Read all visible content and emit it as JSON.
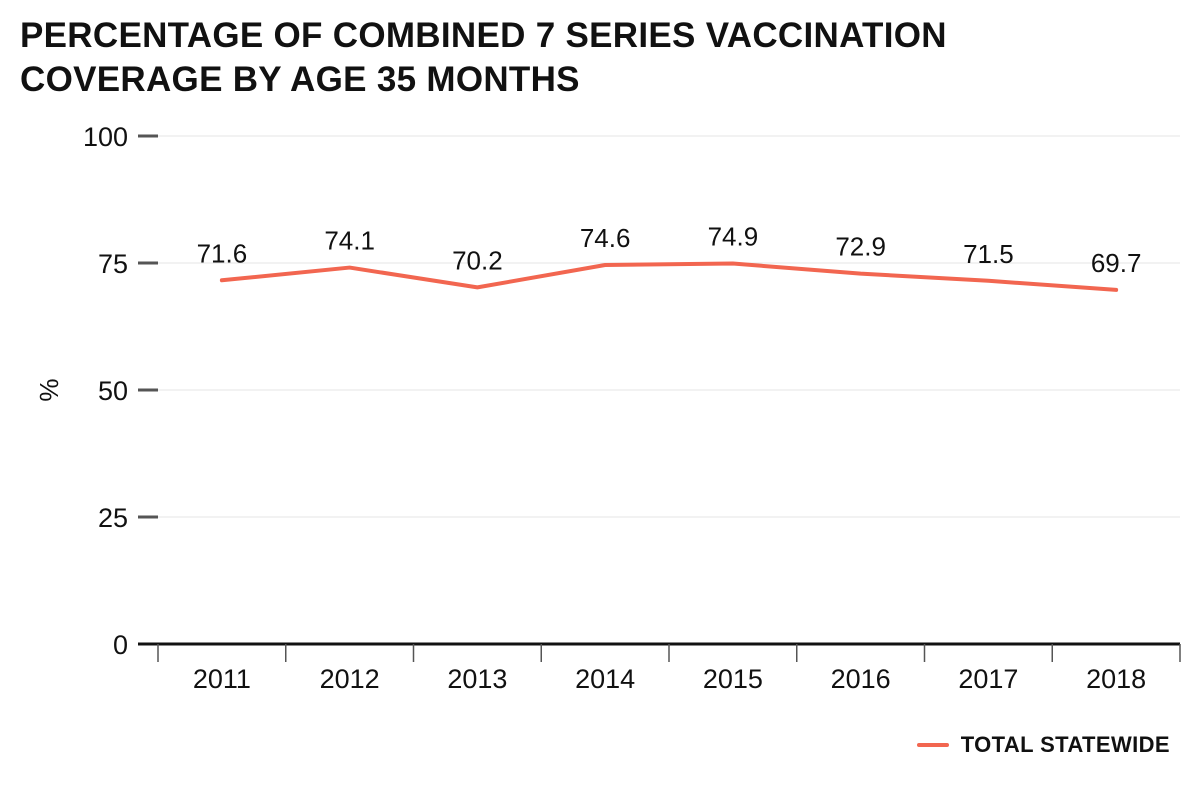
{
  "title_lines": [
    "PERCENTAGE OF COMBINED 7 SERIES VACCINATION",
    "COVERAGE BY AGE 35 MONTHS"
  ],
  "colors": {
    "series": "#F26650",
    "axis": "#111111",
    "tick": "#555555",
    "grid": "#e6e6e6"
  },
  "chart_data": {
    "type": "line",
    "title": "PERCENTAGE OF COMBINED 7 SERIES VACCINATION COVERAGE BY AGE 35 MONTHS",
    "xlabel": "",
    "ylabel": "%",
    "categories": [
      "2011",
      "2012",
      "2013",
      "2014",
      "2015",
      "2016",
      "2017",
      "2018"
    ],
    "series": [
      {
        "name": "TOTAL STATEWIDE",
        "values": [
          71.6,
          74.1,
          70.2,
          74.6,
          74.9,
          72.9,
          71.5,
          69.7
        ],
        "labels": [
          "71.6",
          "74.1",
          "70.2",
          "74.6",
          "74.9",
          "72.9",
          "71.5",
          "69.7"
        ]
      }
    ],
    "ylim": [
      0,
      100
    ],
    "yticks": [
      0,
      25,
      50,
      75,
      100
    ],
    "ytick_labels": [
      "0",
      "25",
      "50",
      "75",
      "100"
    ],
    "grid": true,
    "legend_position": "bottom-right",
    "data_labels": true
  }
}
